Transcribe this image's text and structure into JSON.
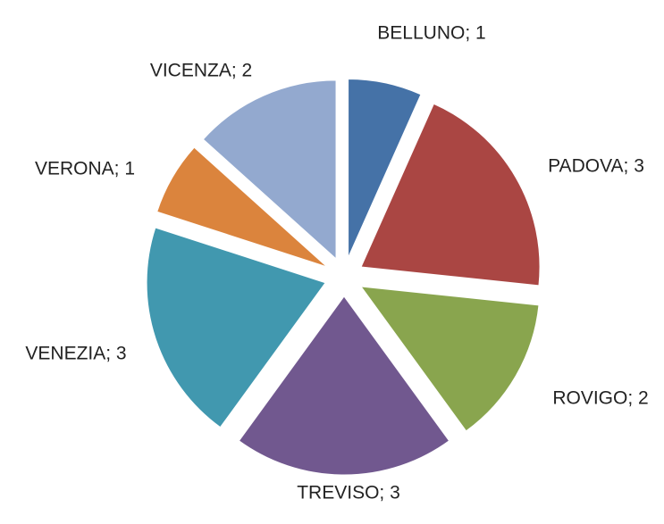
{
  "chart_data": {
    "type": "pie",
    "values": [
      1,
      3,
      2,
      3,
      3,
      1,
      2
    ],
    "value_labels": [
      "BELLUNO; 1",
      "PADOVA; 3",
      "ROVIGO; 2",
      "TREVISO; 3",
      "VENEZIA; 3",
      "VERONA; 1",
      "VICENZA; 2"
    ],
    "colors": [
      "#4572a7",
      "#aa4643",
      "#89a54e",
      "#71588f",
      "#4198af",
      "#db843d",
      "#93a9cf"
    ],
    "exploded": true
  }
}
